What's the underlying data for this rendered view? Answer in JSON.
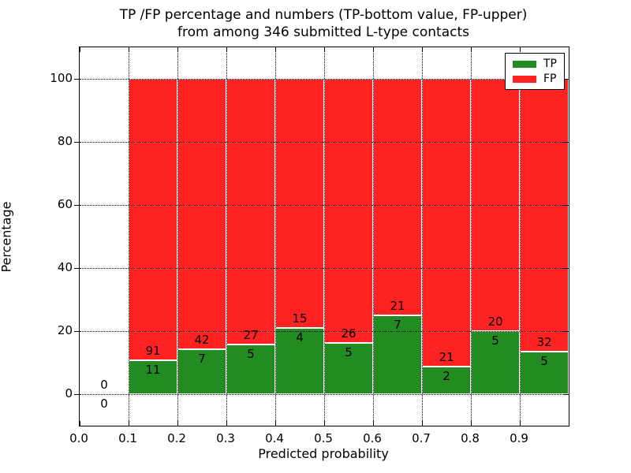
{
  "figure": {
    "background": "#ffffff",
    "text_color": "#000000",
    "title_line1": "TP /FP percentage and numbers (TP-bottom value, FP-upper)",
    "title_line2": "from among 346 submitted L-type contacts"
  },
  "chart_data": {
    "type": "bar",
    "subtype": "stacked-percentage-histogram",
    "title": "TP /FP percentage and numbers (TP-bottom value, FP-upper)\nfrom among 346 submitted L-type contacts",
    "xlabel": "Predicted probability",
    "ylabel": "Percentage",
    "xlim": [
      0.0,
      1.0
    ],
    "ylim": [
      -10,
      110
    ],
    "xticks": [
      "0.0",
      "0.1",
      "0.2",
      "0.3",
      "0.4",
      "0.5",
      "0.6",
      "0.7",
      "0.8",
      "0.9"
    ],
    "yticks": [
      "0",
      "20",
      "40",
      "60",
      "80",
      "100"
    ],
    "grid": {
      "style": "dotted",
      "color": "#000000",
      "x": true,
      "y": true
    },
    "total_submitted": 346,
    "legend": {
      "position": "upper-right",
      "entries": [
        {
          "label": "TP",
          "color": "#228b22"
        },
        {
          "label": "FP",
          "color": "#ff2222"
        }
      ]
    },
    "colors": {
      "tp": "#228b22",
      "fp": "#ff2222",
      "bar_edge": "#ffffff"
    },
    "bins": [
      {
        "x0": 0.0,
        "x1": 0.1,
        "tp": 0,
        "fp": 0,
        "tp_pct": 0,
        "draw_bar": false
      },
      {
        "x0": 0.1,
        "x1": 0.2,
        "tp": 11,
        "fp": 91,
        "tp_pct": 10.78,
        "draw_bar": true
      },
      {
        "x0": 0.2,
        "x1": 0.3,
        "tp": 7,
        "fp": 42,
        "tp_pct": 14.29,
        "draw_bar": true
      },
      {
        "x0": 0.3,
        "x1": 0.4,
        "tp": 5,
        "fp": 27,
        "tp_pct": 15.63,
        "draw_bar": true
      },
      {
        "x0": 0.4,
        "x1": 0.5,
        "tp": 4,
        "fp": 15,
        "tp_pct": 21.05,
        "draw_bar": true
      },
      {
        "x0": 0.5,
        "x1": 0.6,
        "tp": 5,
        "fp": 26,
        "tp_pct": 16.13,
        "draw_bar": true
      },
      {
        "x0": 0.6,
        "x1": 0.7,
        "tp": 7,
        "fp": 21,
        "tp_pct": 25.0,
        "draw_bar": true
      },
      {
        "x0": 0.7,
        "x1": 0.8,
        "tp": 2,
        "fp": 21,
        "tp_pct": 8.7,
        "draw_bar": true
      },
      {
        "x0": 0.8,
        "x1": 0.9,
        "tp": 5,
        "fp": 20,
        "tp_pct": 20.0,
        "draw_bar": true
      },
      {
        "x0": 0.9,
        "x1": 1.0,
        "tp": 5,
        "fp": 32,
        "tp_pct": 13.51,
        "draw_bar": true
      }
    ]
  }
}
